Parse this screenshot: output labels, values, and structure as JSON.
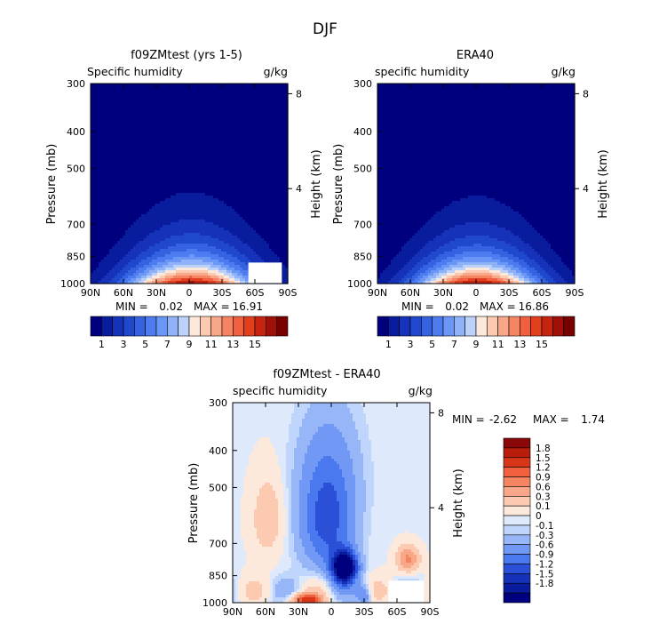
{
  "figure_title": "DJF",
  "chart_data": [
    {
      "type": "heatmap",
      "title": "f09ZMtest (yrs 1-5)",
      "subtitle_left": "Specific humidity",
      "subtitle_right": "g/kg",
      "ylabel": "Pressure (mb)",
      "ylabel_right": "Height (km)",
      "x_ticks": [
        "90N",
        "60N",
        "30N",
        "0",
        "30S",
        "60S",
        "90S"
      ],
      "y_ticks": [
        "300",
        "400",
        "500",
        "700",
        "850",
        "1000"
      ],
      "right_ticks": [
        "8",
        "4"
      ],
      "stats": {
        "min_label": "MIN =",
        "min": "0.02",
        "max_label": "MAX =",
        "max": "16.91"
      },
      "field": {
        "peak": 16.91,
        "center_lat": -2,
        "lat_width": 52,
        "scale_height_hPa": 150,
        "anomaly": "none"
      },
      "missing_region": "right-bottom"
    },
    {
      "type": "heatmap",
      "title": "ERA40",
      "subtitle_left": "specific humidity",
      "subtitle_right": "g/kg",
      "ylabel": "Pressure (mb)",
      "ylabel_right": "Height (km)",
      "x_ticks": [
        "90N",
        "60N",
        "30N",
        "0",
        "30S",
        "60S",
        "90S"
      ],
      "y_ticks": [
        "300",
        "400",
        "500",
        "700",
        "850",
        "1000"
      ],
      "right_ticks": [
        "8",
        "4"
      ],
      "stats": {
        "min_label": "MIN =",
        "min": "0.02",
        "max_label": "MAX =",
        "max": "16.86"
      },
      "field": {
        "peak": 16.86,
        "center_lat": -1,
        "lat_width": 50,
        "scale_height_hPa": 145,
        "anomaly": "none"
      },
      "missing_region": "none"
    },
    {
      "type": "heatmap",
      "title": "f09ZMtest - ERA40",
      "subtitle_left": "specific humidity",
      "subtitle_right": "g/kg",
      "ylabel": "Pressure (mb)",
      "ylabel_right": "Height (km)",
      "x_ticks": [
        "90N",
        "60N",
        "30N",
        "0",
        "30S",
        "60S",
        "90S"
      ],
      "y_ticks": [
        "300",
        "400",
        "500",
        "700",
        "850",
        "1000"
      ],
      "right_ticks": [
        "8",
        "4"
      ],
      "stats": {
        "min_label": "MIN =",
        "min": "-2.62",
        "max_label": "MAX =",
        "max": "1.74"
      },
      "field": {
        "min": -2.62,
        "max": 1.74,
        "anomaly": "difference"
      },
      "missing_region": "right-bottom"
    }
  ],
  "colorbar_main": {
    "colors": [
      "#00007f",
      "#0a1c9e",
      "#1532b8",
      "#1f48cc",
      "#3462e0",
      "#4c7cf0",
      "#6a96f5",
      "#8fb2f8",
      "#bcd2fb",
      "#fde8dc",
      "#fbcab0",
      "#f8a888",
      "#f58562",
      "#f0603e",
      "#e23f1f",
      "#c52410",
      "#a01008",
      "#780000"
    ],
    "labels": [
      "1",
      "3",
      "5",
      "7",
      "9",
      "11",
      "13",
      "15"
    ],
    "levels": [
      1,
      2,
      3,
      4,
      5,
      6,
      7,
      8,
      9,
      10,
      11,
      12,
      13,
      14,
      15,
      16,
      17
    ]
  },
  "colorbar_diff": {
    "colors": [
      "#00007f",
      "#0a1c9e",
      "#1532b8",
      "#2a50d8",
      "#4a78ee",
      "#7098f4",
      "#97b6f7",
      "#c0d5fb",
      "#deeafc",
      "#fde8dc",
      "#fbcab0",
      "#f8a888",
      "#f58562",
      "#f0603e",
      "#d83618",
      "#b81d0c",
      "#8a0808"
    ],
    "labels": [
      "1.8",
      "1.5",
      "1.2",
      "0.9",
      "0.6",
      "0.3",
      "0.1",
      "0",
      "-0.1",
      "-0.3",
      "-0.6",
      "-0.9",
      "-1.2",
      "-1.5",
      "-1.8"
    ],
    "levels": [
      -1.8,
      -1.5,
      -1.2,
      -0.9,
      -0.6,
      -0.3,
      -0.1,
      0,
      0.1,
      0.3,
      0.6,
      0.9,
      1.2,
      1.5,
      1.8
    ]
  }
}
